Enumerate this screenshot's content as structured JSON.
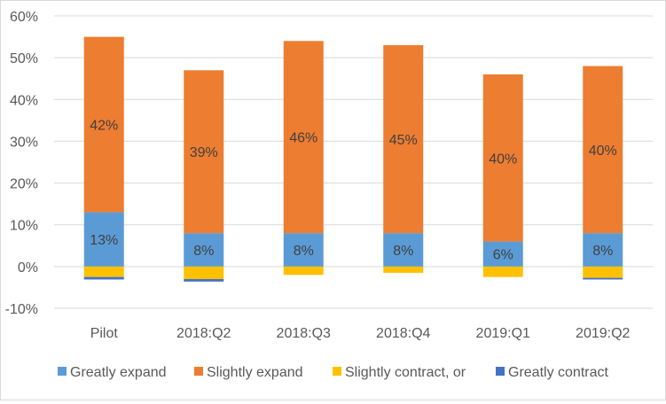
{
  "chart_data": {
    "type": "bar",
    "stacked": true,
    "categories": [
      "Pilot",
      "2018:Q2",
      "2018:Q3",
      "2018:Q4",
      "2019:Q1",
      "2019:Q2"
    ],
    "series": [
      {
        "name": "Greatly expand",
        "color": "#5b9bd5",
        "values": [
          13,
          8,
          8,
          8,
          6,
          8
        ],
        "labels": [
          "13%",
          "8%",
          "8%",
          "8%",
          "6%",
          "8%"
        ]
      },
      {
        "name": "Slightly expand",
        "color": "#ed7d31",
        "values": [
          42,
          39,
          46,
          45,
          40,
          40
        ],
        "labels": [
          "42%",
          "39%",
          "46%",
          "45%",
          "40%",
          "40%"
        ]
      },
      {
        "name": "Slightly contract, or",
        "color": "#ffc000",
        "values": [
          -2.5,
          -3,
          -2,
          -1.5,
          -2.5,
          -2.7
        ]
      },
      {
        "name": "Greatly contract",
        "color": "#4472c4",
        "values": [
          -0.6,
          -0.6,
          0,
          0,
          0,
          -0.4
        ]
      }
    ],
    "yticks": [
      "60%",
      "50%",
      "40%",
      "30%",
      "20%",
      "10%",
      "0%",
      "-10%"
    ],
    "ylim": [
      -10,
      60
    ],
    "grid": true,
    "legend": "bottom",
    "title": "",
    "xlabel": "",
    "ylabel": ""
  }
}
